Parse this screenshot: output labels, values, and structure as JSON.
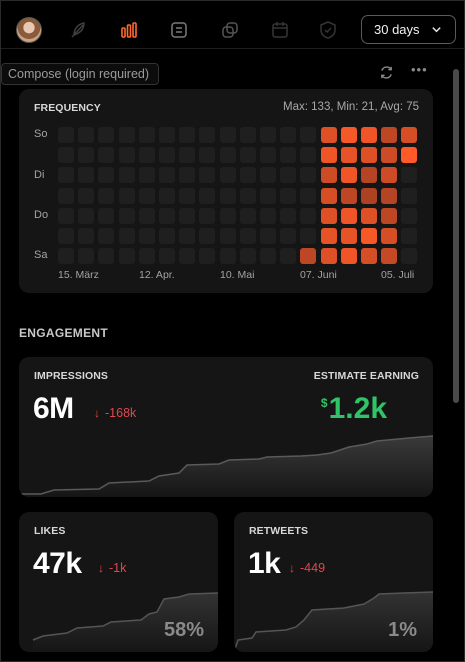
{
  "range_select": {
    "value": "30 days"
  },
  "nav_icons": [
    "avatar",
    "feather-icon",
    "bar-chart-icon",
    "list-icon",
    "copy-icon",
    "calendar-icon",
    "shield-icon"
  ],
  "tooltip": "Compose (login required)",
  "frequency": {
    "title": "FREQUENCY",
    "stats": "Max: 133, Min: 21, Avg: 75",
    "day_labels": [
      "So",
      "Di",
      "Do",
      "Sa"
    ],
    "month_labels": [
      "15. März",
      "12. Apr.",
      "10. Mai",
      "07. Juni",
      "05. Juli"
    ],
    "columns": 18,
    "rows": 7,
    "active_levels": [
      [
        null,
        null,
        null,
        null,
        null,
        null,
        0.6
      ],
      [
        0.8,
        0.9,
        0.7,
        0.75,
        0.8,
        0.85,
        0.8
      ],
      [
        0.95,
        0.85,
        0.9,
        0.6,
        0.9,
        0.85,
        0.9
      ],
      [
        0.9,
        0.8,
        0.55,
        0.5,
        0.8,
        0.95,
        0.75
      ],
      [
        0.6,
        0.7,
        0.7,
        0.55,
        0.6,
        0.75,
        0.65
      ],
      [
        0.75,
        1.0,
        null,
        null,
        null,
        null,
        null
      ]
    ],
    "colors": {
      "empty": "#1f1f1f",
      "low": "#5a2a1e",
      "high": "#ff5a28"
    }
  },
  "engagement": {
    "section_title": "ENGAGEMENT",
    "impressions": {
      "title": "IMPRESSIONS",
      "value": "6M",
      "delta_arrow": "↓",
      "delta": "-168k",
      "earning_title": "ESTIMATE EARNING",
      "earning_currency": "$",
      "earning_value": "1.2k"
    },
    "likes": {
      "title": "LIKES",
      "value": "47k",
      "delta_arrow": "↓",
      "delta": "-1k",
      "percent": "58%"
    },
    "retweets": {
      "title": "RETWEETS",
      "value": "1k",
      "delta_arrow": "↓",
      "delta": "-449",
      "percent": "1%"
    }
  }
}
